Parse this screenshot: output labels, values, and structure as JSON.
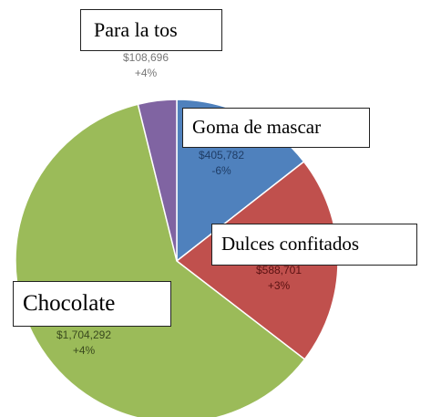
{
  "chart_data": {
    "type": "pie",
    "title": "",
    "categories": [
      "Goma de mascar",
      "Dulces confitados",
      "Chocolate",
      "Para la tos"
    ],
    "values": [
      405782,
      588701,
      1704292,
      108696
    ],
    "value_labels": [
      "$405,782",
      "$588,701",
      "$1,704,292",
      "$108,696"
    ],
    "change_labels": [
      "-6%",
      "+3%",
      "+4%",
      "+4%"
    ],
    "colors": [
      "#4F81BD",
      "#C0504D",
      "#9BBB59",
      "#8064A2"
    ],
    "start_angle_deg": 0,
    "direction": "clockwise",
    "legend": "none"
  }
}
